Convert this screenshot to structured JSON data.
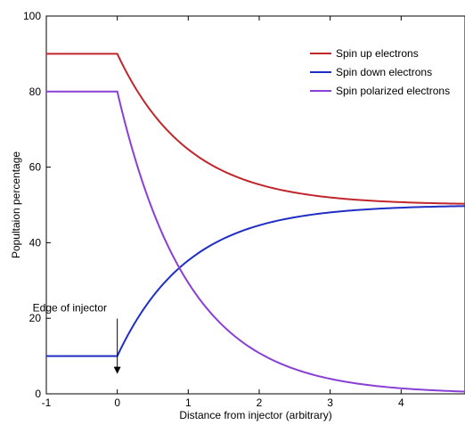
{
  "chart_data": {
    "type": "line",
    "xlabel": "Distance from injector (arbitrary)",
    "ylabel": "Popultaion percentage",
    "xlim": [
      -1,
      4.9
    ],
    "ylim": [
      0,
      100
    ],
    "xticks": [
      "-1",
      "0",
      "1",
      "2",
      "3",
      "4"
    ],
    "yticks": [
      "0",
      "20",
      "40",
      "60",
      "80",
      "100"
    ],
    "grid": false,
    "legend_position": "top-right",
    "series": [
      {
        "name": "Spin up electrons",
        "color": "#c0262b",
        "x": [
          -1,
          0,
          0.25,
          0.5,
          0.75,
          1,
          1.25,
          1.5,
          1.75,
          2,
          2.25,
          2.5,
          2.75,
          3,
          3.25,
          3.5,
          3.75,
          4,
          4.25,
          4.5,
          4.75,
          4.9
        ],
        "y": [
          90,
          90,
          81.2,
          74.3,
          68.9,
          64.7,
          61.5,
          58.9,
          57.0,
          55.4,
          54.2,
          53.3,
          52.6,
          52.0,
          51.6,
          51.2,
          51.0,
          50.7,
          50.6,
          50.4,
          50.3,
          50.3
        ]
      },
      {
        "name": "Spin down electrons",
        "color": "#1f2ec4",
        "x": [
          -1,
          0,
          0.25,
          0.5,
          0.75,
          1,
          1.25,
          1.5,
          1.75,
          2,
          2.25,
          2.5,
          2.75,
          3,
          3.25,
          3.5,
          3.75,
          4,
          4.25,
          4.5,
          4.75,
          4.9
        ],
        "y": [
          10,
          10,
          18.8,
          25.7,
          31.1,
          35.3,
          38.5,
          41.1,
          43.0,
          44.6,
          45.8,
          46.7,
          47.4,
          48.0,
          48.4,
          48.8,
          49.0,
          49.3,
          49.4,
          49.6,
          49.7,
          49.7
        ]
      },
      {
        "name": "Spin polarized electrons",
        "color": "#8a3fd6",
        "x": [
          -1,
          0,
          0.25,
          0.5,
          0.75,
          1,
          1.25,
          1.5,
          1.75,
          2,
          2.25,
          2.5,
          2.75,
          3,
          3.25,
          3.5,
          3.75,
          4,
          4.25,
          4.5,
          4.75,
          4.9
        ],
        "y": [
          80,
          80,
          62.4,
          48.6,
          37.8,
          29.4,
          22.9,
          17.9,
          13.9,
          10.8,
          8.4,
          6.6,
          5.1,
          4.0,
          3.1,
          2.4,
          1.9,
          1.5,
          1.1,
          0.9,
          0.7,
          0.6
        ]
      }
    ],
    "annotations": [
      {
        "text": "Edge of injector",
        "x": 0,
        "y": 10,
        "arrow": true
      }
    ]
  }
}
